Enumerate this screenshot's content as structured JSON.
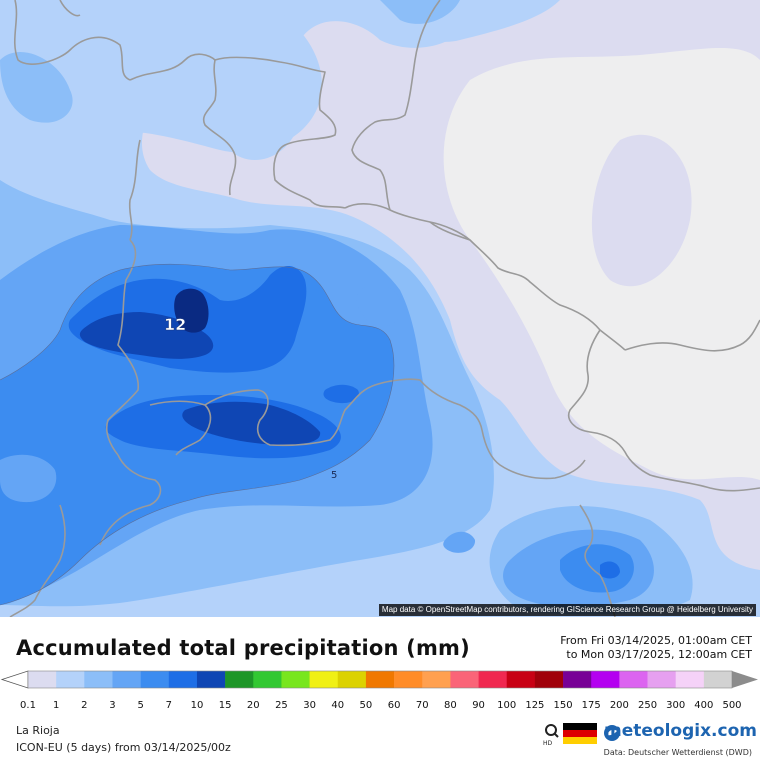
{
  "map": {
    "contour_label_max": "12",
    "contour_label_small": "5",
    "attribution": "Map data © OpenStreetMap contributors, rendering GIScience Research Group @ Heidelberg University"
  },
  "legend": {
    "title": "Accumulated total precipitation (mm)",
    "period_from": "From Fri 03/14/2025, 01:00am CET",
    "period_to": "to Mon 03/17/2025, 12:00am CET",
    "scale_values": [
      "0.1",
      "1",
      "2",
      "3",
      "5",
      "7",
      "10",
      "15",
      "20",
      "25",
      "30",
      "40",
      "50",
      "60",
      "70",
      "80",
      "90",
      "100",
      "125",
      "150",
      "175",
      "200",
      "250",
      "300",
      "400",
      "500"
    ],
    "scale_colors": [
      "#dcdcf0",
      "#b4d2fa",
      "#8cbef8",
      "#64a5f5",
      "#3c8cf0",
      "#1e6ee6",
      "#0f46b4",
      "#1e9628",
      "#32c832",
      "#78e61e",
      "#f0f014",
      "#dcd200",
      "#f07800",
      "#ff8c28",
      "#ffa050",
      "#fa6478",
      "#f02850",
      "#c80014",
      "#a0000a",
      "#780096",
      "#b400f0",
      "#dc64f0",
      "#e6a0f0",
      "#f5d2f8",
      "#d2d2d2"
    ],
    "location": "La Rioja",
    "model_run": "ICON-EU (5 days) from 03/14/2025/00z",
    "brand": "meteologix.com",
    "source": "Data: Deutscher Wetterdienst (DWD)",
    "hd_label": "HD"
  }
}
